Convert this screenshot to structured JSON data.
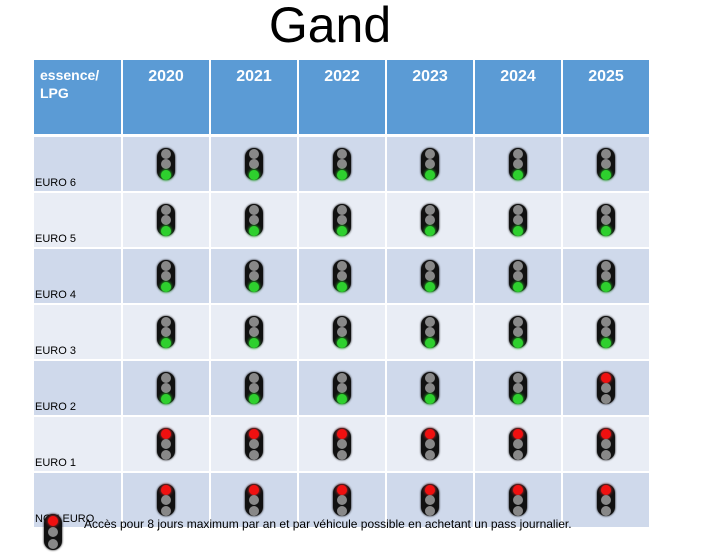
{
  "title": "Gand",
  "header": {
    "corner": "essence/ LPG",
    "years": [
      "2020",
      "2021",
      "2022",
      "2023",
      "2024",
      "2025"
    ]
  },
  "rows": [
    {
      "label": "EURO 6",
      "lights": [
        "green",
        "green",
        "green",
        "green",
        "green",
        "green"
      ]
    },
    {
      "label": "EURO 5",
      "lights": [
        "green",
        "green",
        "green",
        "green",
        "green",
        "green"
      ]
    },
    {
      "label": "EURO 4",
      "lights": [
        "green",
        "green",
        "green",
        "green",
        "green",
        "green"
      ]
    },
    {
      "label": "EURO 3",
      "lights": [
        "green",
        "green",
        "green",
        "green",
        "green",
        "green"
      ]
    },
    {
      "label": "EURO 2",
      "lights": [
        "green",
        "green",
        "green",
        "green",
        "green",
        "red"
      ]
    },
    {
      "label": "EURO 1",
      "lights": [
        "red",
        "red",
        "red",
        "red",
        "red",
        "red"
      ]
    },
    {
      "label": "NON EURO",
      "lights": [
        "red",
        "red",
        "red",
        "red",
        "red",
        "red"
      ]
    }
  ],
  "legend": {
    "light": "red",
    "text": "Accès pour 8 jours maximum par an et par véhicule possible en achetant un pass journalier."
  },
  "colors": {
    "header": "#5b9bd5",
    "row_dark": "#cfd9eb",
    "row_light": "#e9edf5",
    "green": "#2ed02e",
    "red": "#f01010"
  }
}
